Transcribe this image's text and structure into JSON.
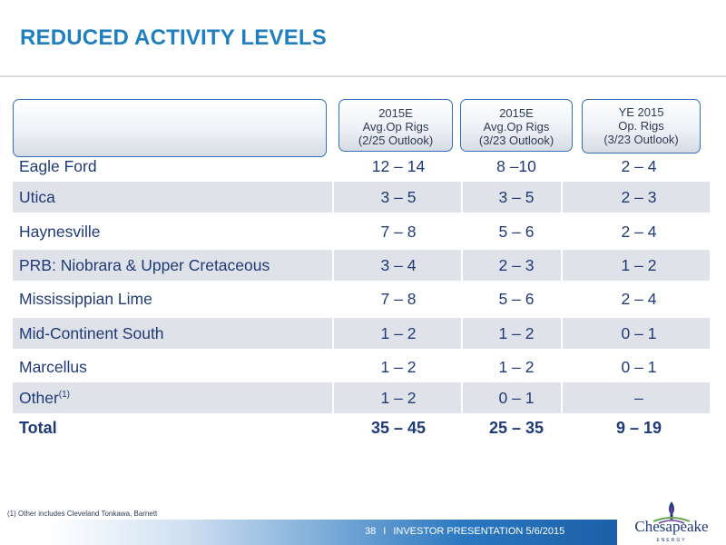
{
  "title": "REDUCED ACTIVITY LEVELS",
  "table": {
    "headers": [
      [
        "2015E",
        "Avg.Op Rigs",
        "(2/25 Outlook)"
      ],
      [
        "2015E",
        "Avg.Op Rigs",
        "(3/23 Outlook)"
      ],
      [
        "YE 2015",
        "Op. Rigs",
        "(3/23 Outlook)"
      ]
    ],
    "rows": [
      {
        "name": "Eagle Ford",
        "v1": "12 – 14",
        "v2": "8 –10",
        "v3": "2 – 4"
      },
      {
        "name": "Utica",
        "v1": "3 – 5",
        "v2": "3 – 5",
        "v3": "2 – 3"
      },
      {
        "name": "Haynesville",
        "v1": "7 – 8",
        "v2": "5 – 6",
        "v3": "2 – 4"
      },
      {
        "name": "PRB: Niobrara & Upper Cretaceous",
        "v1": "3 – 4",
        "v2": "2 – 3",
        "v3": "1 – 2"
      },
      {
        "name": "Mississippian Lime",
        "v1": "7 – 8",
        "v2": "5 – 6",
        "v3": "2 – 4"
      },
      {
        "name": "Mid-Continent South",
        "v1": "1 – 2",
        "v2": "1 – 2",
        "v3": "0 – 1"
      },
      {
        "name": "Marcellus",
        "v1": "1 – 2",
        "v2": "1 – 2",
        "v3": "0 – 1"
      },
      {
        "name": "Other",
        "sup": "(1)",
        "v1": "1 – 2",
        "v2": "0 – 1",
        "v3": "–"
      }
    ],
    "total": {
      "name": "Total",
      "v1": "35 – 45",
      "v2": "25 – 35",
      "v3": "9 – 19"
    }
  },
  "footnote": "(1) Other includes Cleveland Tonkawa, Barnett",
  "footer": {
    "page": "38",
    "separator": "I",
    "label": "INVESTOR PRESENTATION 5/6/2015"
  },
  "logo": {
    "text": "Chesapeake",
    "subtext": "ENERGY",
    "colors": {
      "blue": "#1f3a78",
      "green": "#6aa84f",
      "purple": "#6b3fa0"
    }
  },
  "colors": {
    "title": "#1f7fbf",
    "text": "#1f3a78",
    "row_shade": "#dfe2e8",
    "header_border": "#2f70b6"
  }
}
